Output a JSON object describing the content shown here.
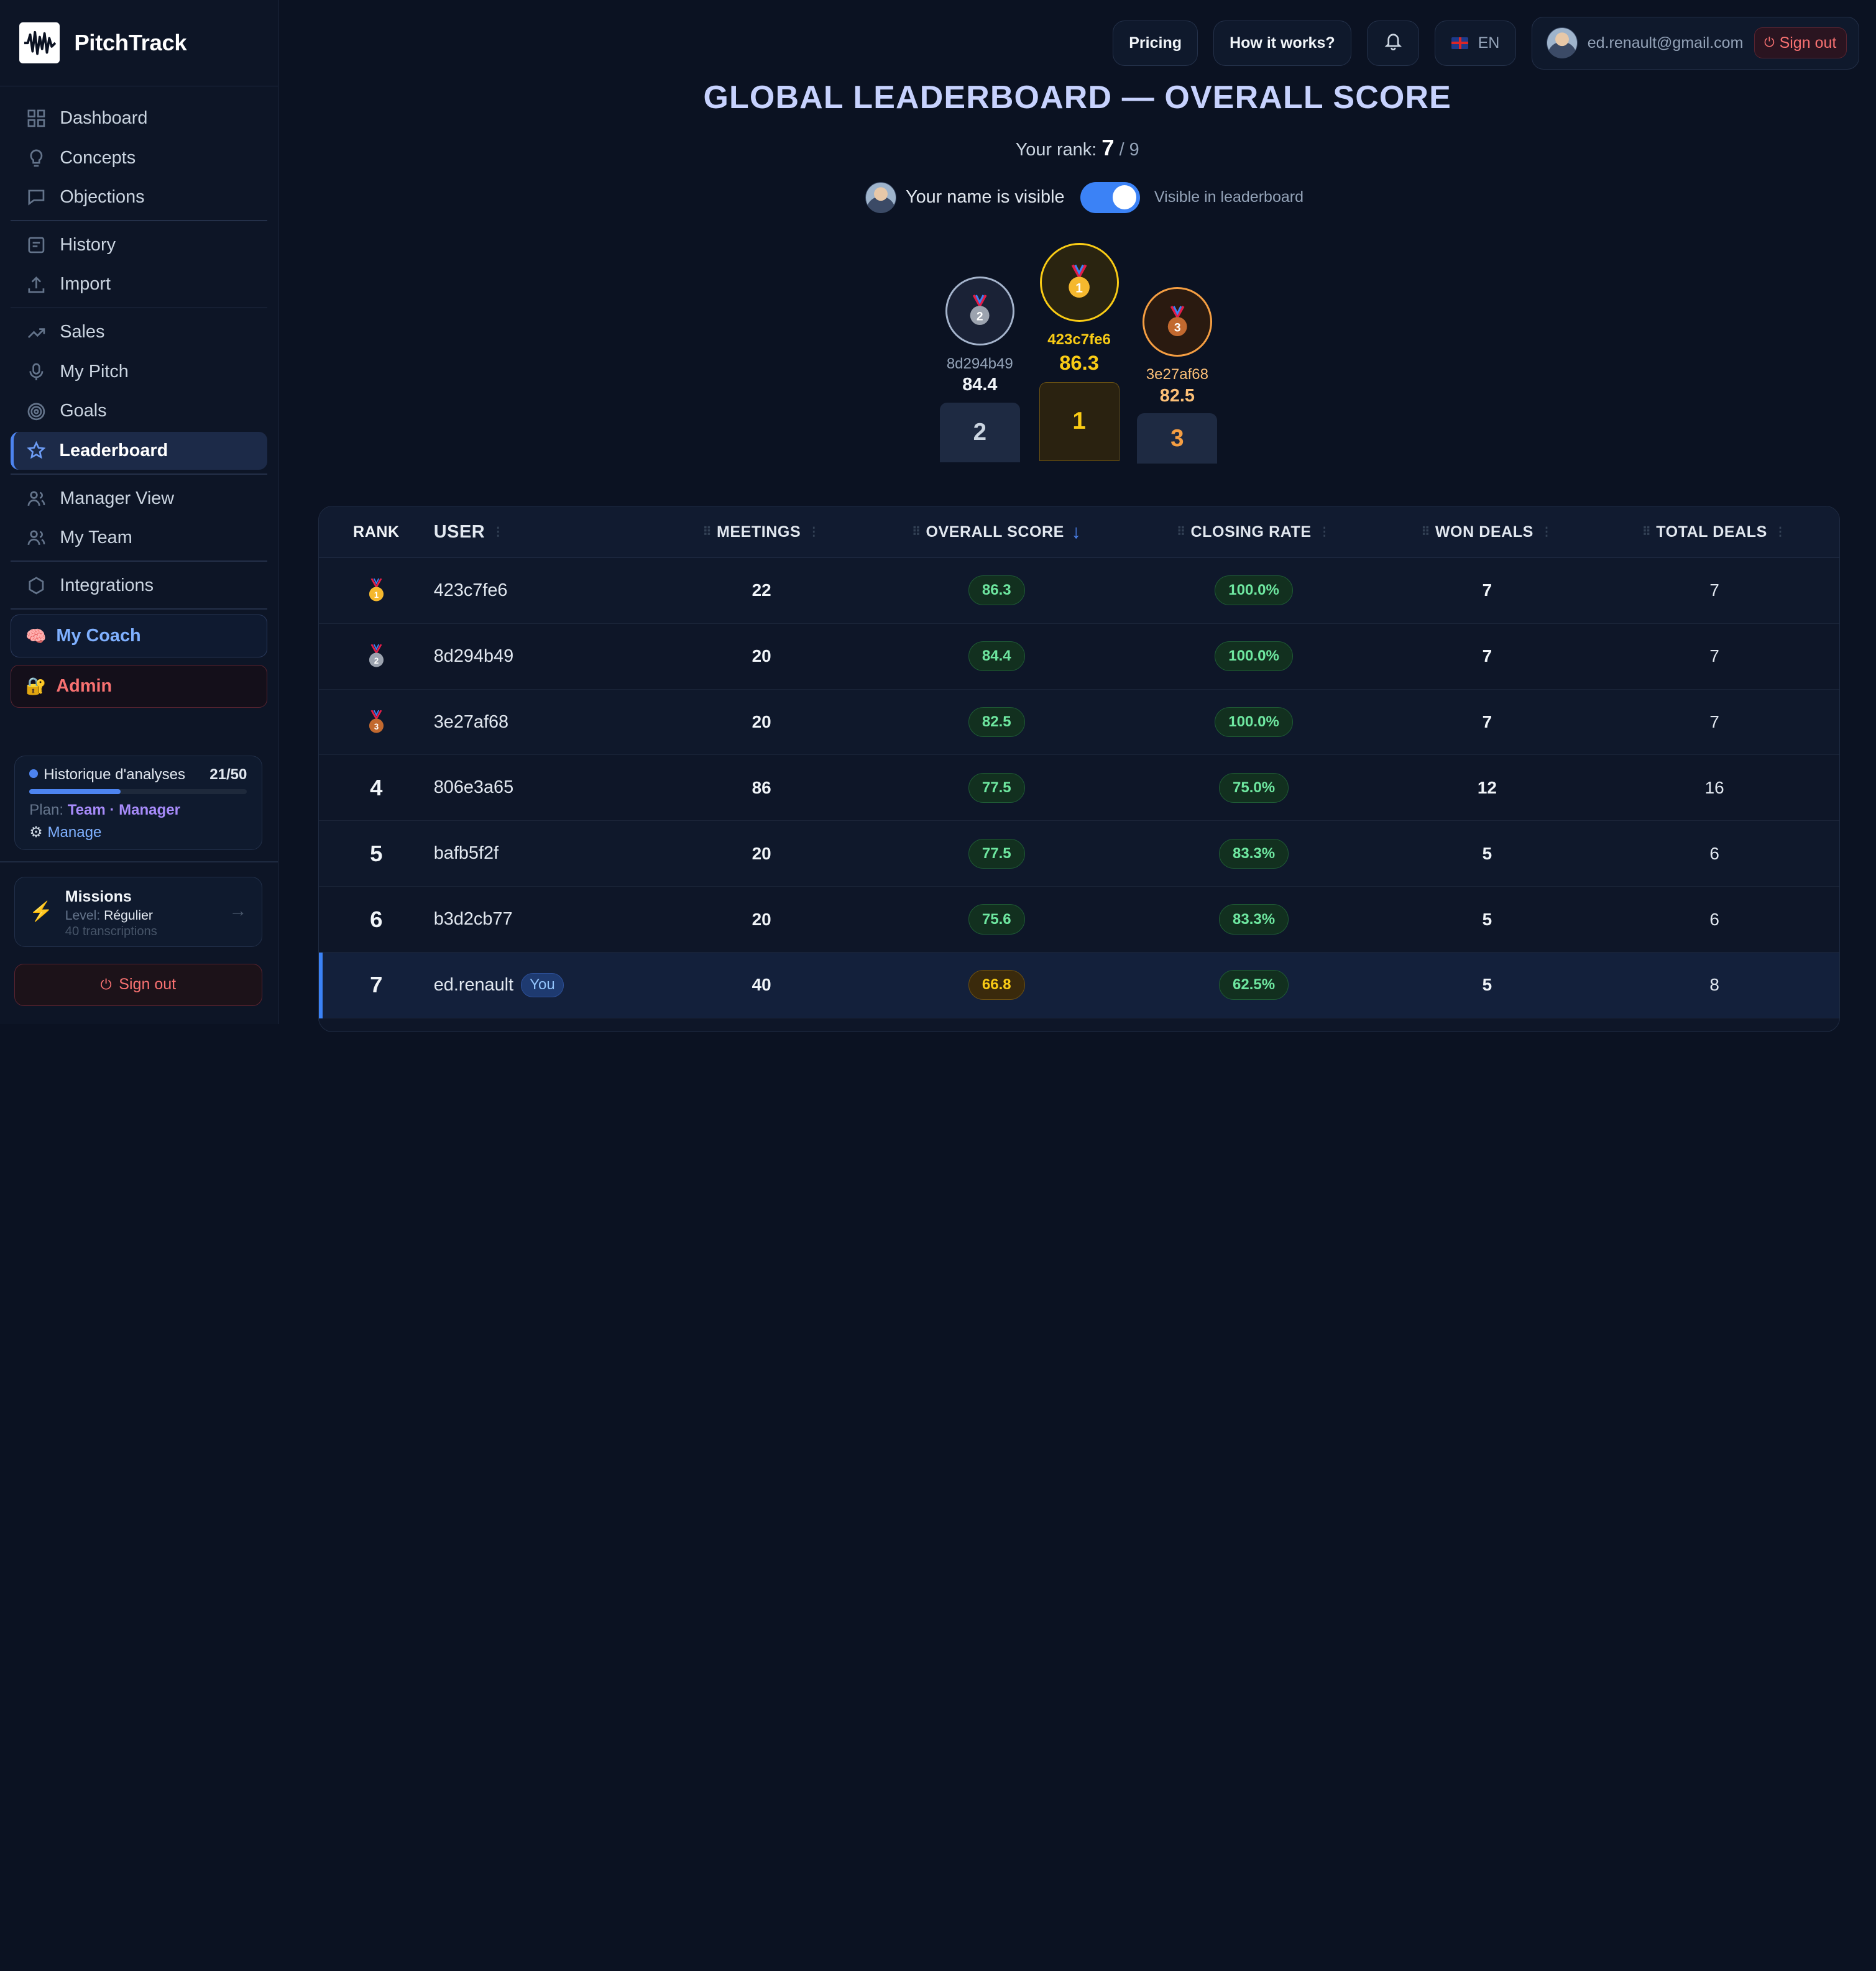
{
  "app": {
    "name": "PitchTrack"
  },
  "sidebar": {
    "items": [
      {
        "label": "Dashboard",
        "icon": "grid-icon"
      },
      {
        "label": "Concepts",
        "icon": "lightbulb-icon"
      },
      {
        "label": "Objections",
        "icon": "chat-icon"
      },
      {
        "label": "History",
        "icon": "history-icon"
      },
      {
        "label": "Import",
        "icon": "upload-icon"
      },
      {
        "label": "Sales",
        "icon": "trend-icon"
      },
      {
        "label": "My Pitch",
        "icon": "mic-icon"
      },
      {
        "label": "Goals",
        "icon": "target-icon"
      },
      {
        "label": "Leaderboard",
        "icon": "star-icon",
        "active": true
      },
      {
        "label": "Manager View",
        "icon": "users-icon"
      },
      {
        "label": "My Team",
        "icon": "team-icon"
      },
      {
        "label": "Integrations",
        "icon": "hexagon-icon"
      }
    ],
    "coach_label": "My Coach",
    "admin_label": "Admin",
    "quota": {
      "label": "Historique d'analyses",
      "count": "21/50",
      "used": 21,
      "max": 50,
      "plan_prefix": "Plan:",
      "plan_name": "Team · Manager",
      "manage_label": "Manage"
    },
    "missions": {
      "title": "Missions",
      "level_prefix": "Level:",
      "level": "Régulier",
      "transcriptions": "40 transcriptions",
      "arrow": "→"
    },
    "signout_label": "Sign out"
  },
  "topbar": {
    "pricing": "Pricing",
    "how": "How it works?",
    "lang": "EN",
    "email": "ed.renault@gmail.com",
    "signout": "Sign out"
  },
  "page": {
    "title": "GLOBAL LEADERBOARD — OVERALL SCORE",
    "rank_prefix": "Your rank:",
    "rank": "7",
    "rank_total": "/ 9",
    "name_visible_text": "Your name is visible",
    "visible_label": "Visible in leaderboard",
    "toggle_on": true
  },
  "podium": [
    {
      "place": "2",
      "user": "8d294b49",
      "score": "84.4"
    },
    {
      "place": "1",
      "user": "423c7fe6",
      "score": "86.3"
    },
    {
      "place": "3",
      "user": "3e27af68",
      "score": "82.5"
    }
  ],
  "table": {
    "headers": [
      "RANK",
      "USER",
      "MEETINGS",
      "OVERALL SCORE",
      "CLOSING RATE",
      "WON DEALS",
      "TOTAL DEALS"
    ],
    "sort_arrow": "↓",
    "you_label": "You",
    "rows": [
      {
        "rank": "1",
        "medal": "gold",
        "user": "423c7fe6",
        "meetings": "22",
        "score": "86.3",
        "closing": "100.0%",
        "won": "7",
        "total": "7"
      },
      {
        "rank": "2",
        "medal": "silver",
        "user": "8d294b49",
        "meetings": "20",
        "score": "84.4",
        "closing": "100.0%",
        "won": "7",
        "total": "7"
      },
      {
        "rank": "3",
        "medal": "bronze",
        "user": "3e27af68",
        "meetings": "20",
        "score": "82.5",
        "closing": "100.0%",
        "won": "7",
        "total": "7"
      },
      {
        "rank": "4",
        "user": "806e3a65",
        "meetings": "86",
        "score": "77.5",
        "closing": "75.0%",
        "won": "12",
        "total": "16"
      },
      {
        "rank": "5",
        "user": "bafb5f2f",
        "meetings": "20",
        "score": "77.5",
        "closing": "83.3%",
        "won": "5",
        "total": "6"
      },
      {
        "rank": "6",
        "user": "b3d2cb77",
        "meetings": "20",
        "score": "75.6",
        "closing": "83.3%",
        "won": "5",
        "total": "6"
      },
      {
        "rank": "7",
        "user": "ed.renault",
        "meetings": "40",
        "score": "66.8",
        "closing": "62.5%",
        "won": "5",
        "total": "8",
        "you": true
      }
    ]
  },
  "colors": {
    "accent": "#4d84f0",
    "gold": "#facc15",
    "silver": "#94a3b8",
    "bronze": "#f59e42",
    "danger": "#f87171",
    "success": "#6ee7a0"
  }
}
